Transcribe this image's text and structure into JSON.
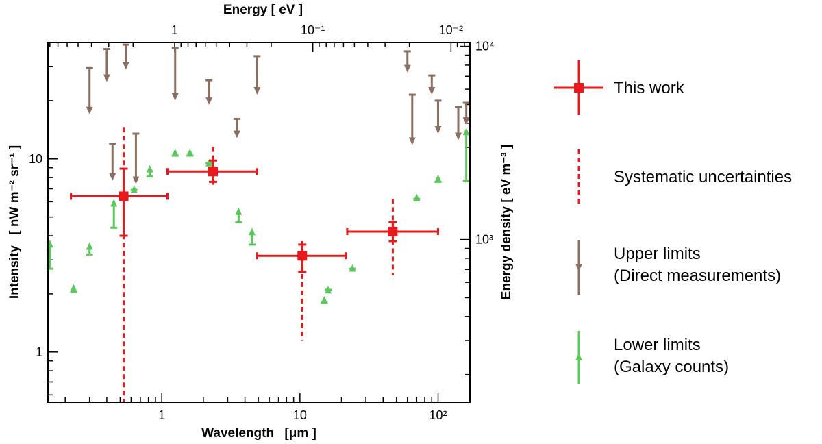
{
  "chart_data": {
    "type": "scatter",
    "xscale": "log",
    "yscale": "log",
    "xlim": [
      0.15,
      170
    ],
    "ylim": [
      0.55,
      40
    ],
    "xlabel_main": "Wavelength",
    "xlabel_unit": "[μm ]",
    "ylabel_main": "Intensity",
    "ylabel_unit": "[ nW m⁻² sr⁻¹ ]",
    "top_axis_label": "Energy [ eV ]",
    "right_axis_label": "Energy density [ eV m⁻³ ]",
    "x_ticks": [
      {
        "value": 1,
        "label": "1"
      },
      {
        "value": 10,
        "label": "10"
      },
      {
        "value": 100,
        "label": "10²"
      }
    ],
    "y_ticks": [
      {
        "value": 1,
        "label": "1"
      },
      {
        "value": 10,
        "label": "10"
      }
    ],
    "top_ticks": [
      {
        "value": 1,
        "label": "1"
      },
      {
        "value": 0.1,
        "label": "10⁻¹"
      },
      {
        "value": 0.01,
        "label": "10⁻²"
      }
    ],
    "right_ticks": [
      {
        "value": 1000,
        "label": "10³"
      },
      {
        "value": 10000,
        "label": "10⁴"
      }
    ],
    "series": [
      {
        "name": "This work",
        "color": "#e8191a",
        "points": [
          {
            "x": 0.53,
            "y": 6.4,
            "xmin": 0.22,
            "xmax": 1.1,
            "ymin": 4.0,
            "ymax": 8.9,
            "sys_min": 0.55,
            "sys_max": 14.5
          },
          {
            "x": 2.35,
            "y": 8.6,
            "xmin": 1.1,
            "xmax": 4.9,
            "ymin": 7.6,
            "ymax": 9.8,
            "sys_min": 7.1,
            "sys_max": 11.5
          },
          {
            "x": 10.4,
            "y": 3.15,
            "xmin": 4.9,
            "xmax": 21.5,
            "ymin": 2.6,
            "ymax": 3.6,
            "sys_min": 1.15,
            "sys_max": 3.75
          },
          {
            "x": 47,
            "y": 4.2,
            "xmin": 22,
            "xmax": 100,
            "ymin": 3.75,
            "ymax": 4.7,
            "sys_min": 2.5,
            "sys_max": 6.2
          }
        ]
      },
      {
        "name": "Upper limits (Direct measurements)",
        "color": "#8c6e5f",
        "points": [
          {
            "x": 0.3,
            "top": 29.5,
            "tip": 17
          },
          {
            "x": 0.4,
            "top": 37,
            "tip": 25
          },
          {
            "x": 0.44,
            "top": 12,
            "tip": 7.7
          },
          {
            "x": 0.55,
            "top": 39,
            "tip": 29
          },
          {
            "x": 0.65,
            "top": 13.5,
            "tip": 7.4
          },
          {
            "x": 1.25,
            "top": 37.5,
            "tip": 20
          },
          {
            "x": 2.2,
            "top": 25.5,
            "tip": 19
          },
          {
            "x": 3.5,
            "top": 16.1,
            "tip": 12.8
          },
          {
            "x": 4.9,
            "top": 34,
            "tip": 21.5
          },
          {
            "x": 60,
            "top": 36,
            "tip": 28
          },
          {
            "x": 65,
            "top": 21.5,
            "tip": 11.8
          },
          {
            "x": 90,
            "top": 27,
            "tip": 21.5
          },
          {
            "x": 100,
            "top": 20,
            "tip": 13.5
          },
          {
            "x": 140,
            "top": 18.5,
            "tip": 12.5
          },
          {
            "x": 160,
            "top": 19.5,
            "tip": 15
          }
        ]
      },
      {
        "name": "Lower limits (Galaxy counts)",
        "color": "#5ac85a",
        "points": [
          {
            "x": 0.155,
            "bottom": 2.7,
            "tip": 3.8
          },
          {
            "x": 0.23,
            "bottom": 2.05,
            "tip": 2.25
          },
          {
            "x": 0.3,
            "bottom": 3.2,
            "tip": 3.7
          },
          {
            "x": 0.45,
            "bottom": 4.4,
            "tip": 6.2
          },
          {
            "x": 0.63,
            "bottom": 6.9,
            "tip": 7.3
          },
          {
            "x": 0.82,
            "bottom": 8.1,
            "tip": 9.3
          },
          {
            "x": 1.25,
            "bottom": 10.4,
            "tip": 11.3
          },
          {
            "x": 1.6,
            "bottom": 10.4,
            "tip": 11.3
          },
          {
            "x": 2.2,
            "bottom": 9.5,
            "tip": 10
          },
          {
            "x": 3.6,
            "bottom": 4.7,
            "tip": 5.6
          },
          {
            "x": 4.5,
            "bottom": 3.6,
            "tip": 4.4
          },
          {
            "x": 15,
            "bottom": 1.8,
            "tip": 1.95
          },
          {
            "x": 16,
            "bottom": 2.1,
            "tip": 2.2
          },
          {
            "x": 24,
            "bottom": 2.7,
            "tip": 2.85
          },
          {
            "x": 70,
            "bottom": 6.2,
            "tip": 6.6
          },
          {
            "x": 100,
            "bottom": 7.6,
            "tip": 8.3
          },
          {
            "x": 160,
            "bottom": 7.7,
            "tip": 14.5
          }
        ]
      }
    ],
    "legend": [
      {
        "type": "this-work",
        "lines": [
          "This work"
        ]
      },
      {
        "type": "systematic",
        "lines": [
          "Systematic uncertainties"
        ]
      },
      {
        "type": "upper",
        "lines": [
          "Upper limits",
          "(Direct measurements)"
        ]
      },
      {
        "type": "lower",
        "lines": [
          "Lower limits",
          "(Galaxy counts)"
        ]
      }
    ]
  }
}
